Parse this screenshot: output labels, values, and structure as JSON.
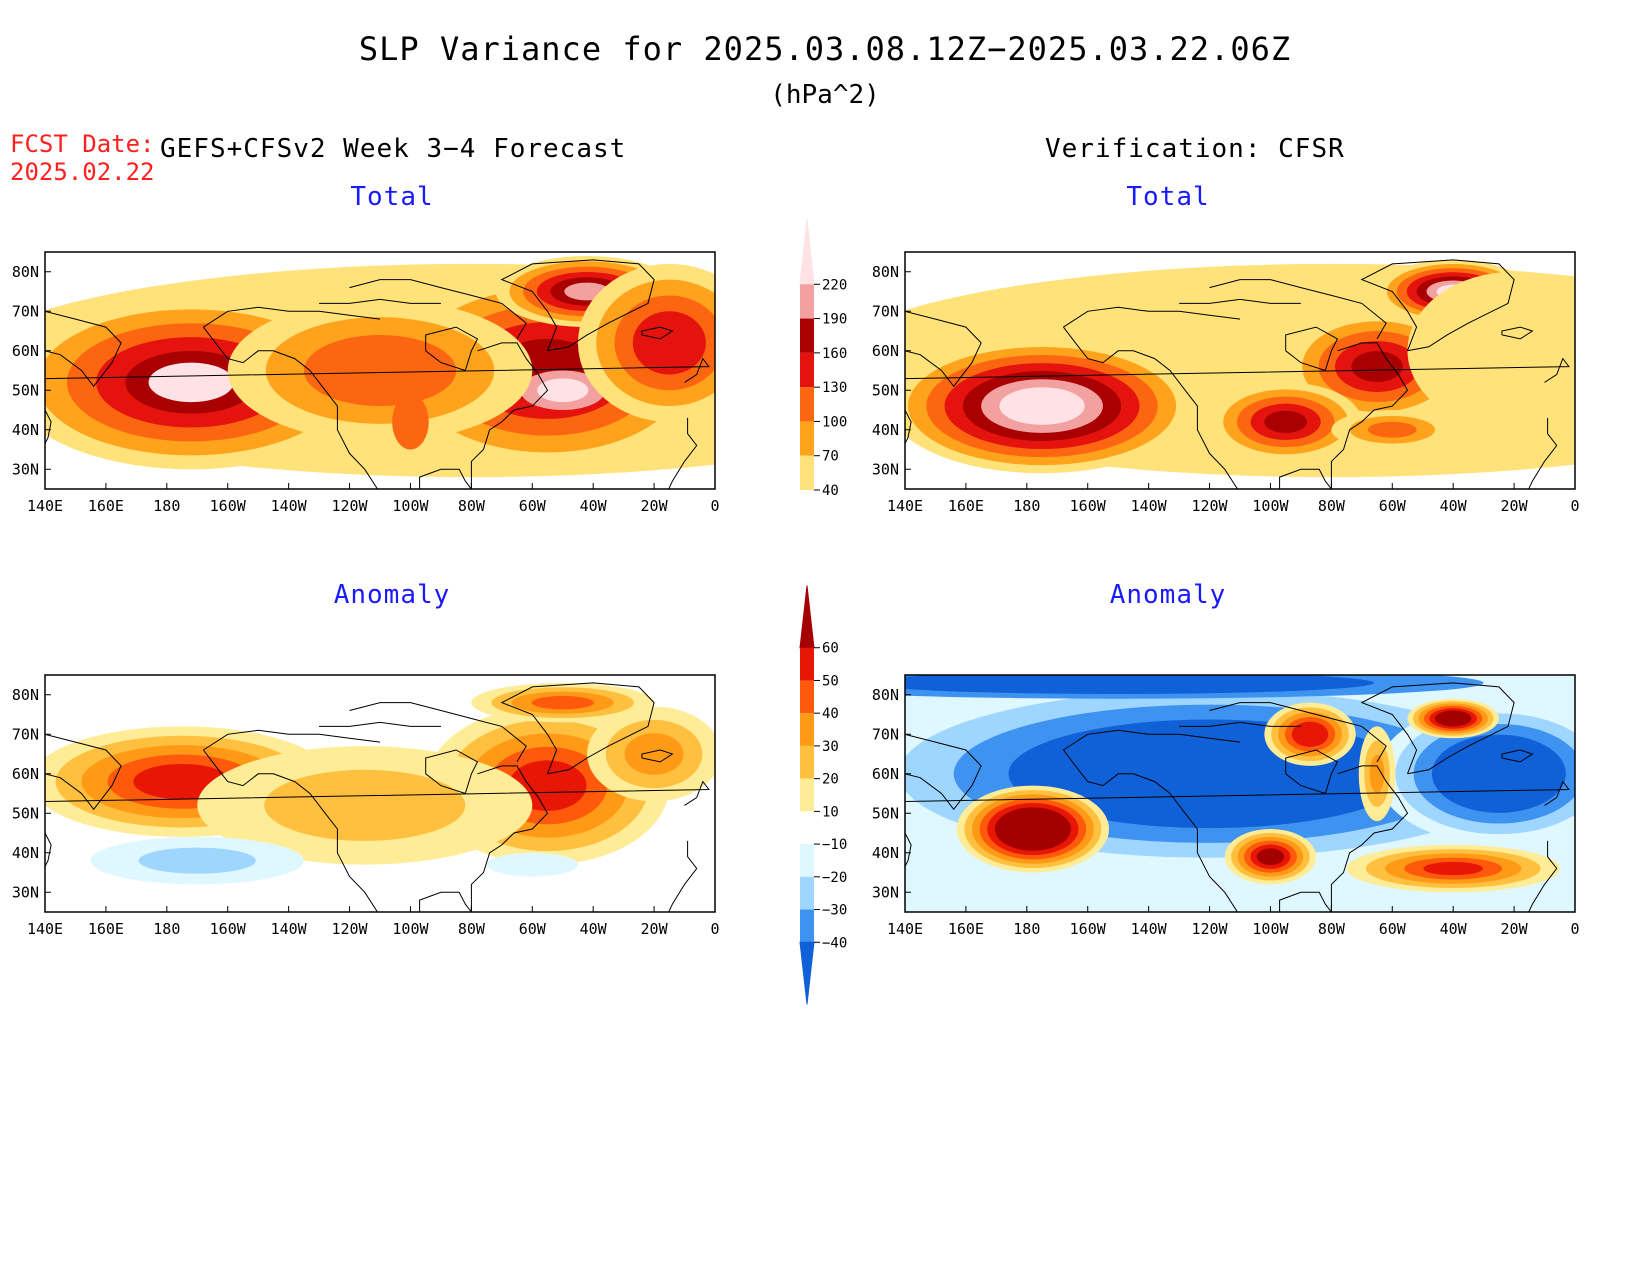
{
  "title": "SLP Variance for 2025.03.08.12Z−2025.03.22.06Z",
  "units": "(hPa^2)",
  "fcst_label": "FCST Date:",
  "fcst_date": "2025.02.22",
  "left_header": "GEFS+CFSv2 Week 3−4 Forecast",
  "right_header": "Verification: CFSR",
  "panels": {
    "forecast_total": {
      "subtitle": "Total"
    },
    "verification_total": {
      "subtitle": "Total"
    },
    "forecast_anomaly": {
      "subtitle": "Anomaly"
    },
    "verification_anomaly": {
      "subtitle": "Anomaly"
    }
  },
  "x_ticks": [
    "140E",
    "160E",
    "180",
    "160W",
    "140W",
    "120W",
    "100W",
    "80W",
    "60W",
    "40W",
    "20W",
    "0"
  ],
  "y_ticks": [
    "80N",
    "70N",
    "60N",
    "50N",
    "40N",
    "30N"
  ],
  "total_scale": {
    "levels": [
      "40",
      "70",
      "100",
      "130",
      "160",
      "190",
      "220"
    ],
    "colors": [
      "#ffe27a",
      "#ffa21c",
      "#fd6611",
      "#e4130e",
      "#a90101",
      "#f2a0a0",
      "#ffe2e6"
    ]
  },
  "anomaly_scale": {
    "levels": [
      "60",
      "50",
      "40",
      "30",
      "20",
      "10",
      "−10",
      "−20",
      "−30",
      "−40"
    ],
    "colors": [
      "#a50000",
      "#e81605",
      "#ff5a0b",
      "#ff9a17",
      "#ffc040",
      "#ffec96",
      "#ffffff",
      "#dff7ff",
      "#9fd6ff",
      "#3e93f1",
      "#1060d8"
    ]
  },
  "chart_data": [
    {
      "type": "heatmap",
      "title": "Total",
      "source": "GEFS+CFSv2 Week 3−4 Forecast",
      "xlabel": "",
      "ylabel": "",
      "x_range": [
        "140E",
        "0"
      ],
      "y_range": [
        "25N",
        "85N"
      ],
      "levels": [
        40,
        70,
        100,
        130,
        160,
        190,
        220
      ],
      "maxima": [
        {
          "lon": -173,
          "lat": 52,
          "value": 220
        },
        {
          "lon": -50,
          "lat": 50,
          "value": 220
        },
        {
          "lon": -42,
          "lat": 75,
          "value": 190
        },
        {
          "lon": -15,
          "lat": 65,
          "value": 160
        }
      ]
    },
    {
      "type": "heatmap",
      "title": "Total",
      "source": "Verification: CFSR",
      "x_range": [
        "140E",
        "0"
      ],
      "y_range": [
        "25N",
        "85N"
      ],
      "levels": [
        40,
        70,
        100,
        130,
        160,
        190,
        220
      ],
      "maxima": [
        {
          "lon": -175,
          "lat": 47,
          "value": 220
        },
        {
          "lon": -40,
          "lat": 75,
          "value": 220
        },
        {
          "lon": -65,
          "lat": 56,
          "value": 160
        },
        {
          "lon": -97,
          "lat": 40,
          "value": 160
        }
      ]
    },
    {
      "type": "heatmap",
      "title": "Anomaly",
      "source": "GEFS+CFSv2 Week 3−4 Forecast",
      "x_range": [
        "140E",
        "0"
      ],
      "y_range": [
        "25N",
        "85N"
      ],
      "levels": [
        -40,
        -30,
        -20,
        -10,
        10,
        20,
        30,
        40,
        50,
        60
      ],
      "maxima": [
        {
          "lon": -175,
          "lat": 57,
          "value": 50
        },
        {
          "lon": -55,
          "lat": 57,
          "value": 50
        },
        {
          "lon": -50,
          "lat": 77,
          "value": 40
        },
        {
          "lon": -170,
          "lat": 38,
          "value": -20
        }
      ]
    },
    {
      "type": "heatmap",
      "title": "Anomaly",
      "source": "Verification: CFSR",
      "x_range": [
        "140E",
        "0"
      ],
      "y_range": [
        "25N",
        "85N"
      ],
      "levels": [
        -40,
        -30,
        -20,
        -10,
        10,
        20,
        30,
        40,
        50,
        60
      ],
      "maxima": [
        {
          "lon": -178,
          "lat": 46,
          "value": 60
        },
        {
          "lon": -40,
          "lat": 74,
          "value": 60
        },
        {
          "lon": -87,
          "lat": 70,
          "value": 50
        },
        {
          "lon": -100,
          "lat": 39,
          "value": 50
        },
        {
          "lon": -120,
          "lat": 62,
          "value": -40
        },
        {
          "lon": -20,
          "lat": 60,
          "value": -40
        }
      ]
    }
  ]
}
